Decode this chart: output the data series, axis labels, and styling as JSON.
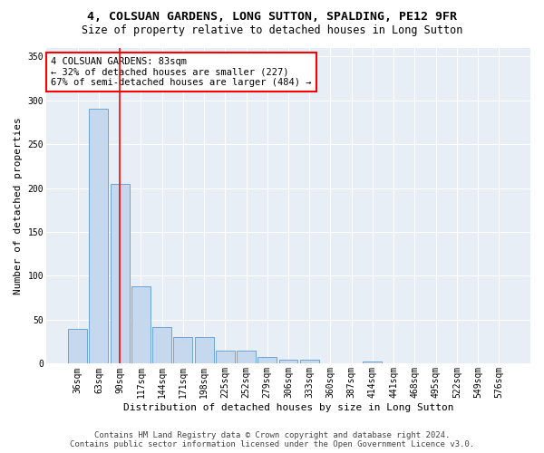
{
  "title": "4, COLSUAN GARDENS, LONG SUTTON, SPALDING, PE12 9FR",
  "subtitle": "Size of property relative to detached houses in Long Sutton",
  "xlabel": "Distribution of detached houses by size in Long Sutton",
  "ylabel": "Number of detached properties",
  "footer_line1": "Contains HM Land Registry data © Crown copyright and database right 2024.",
  "footer_line2": "Contains public sector information licensed under the Open Government Licence v3.0.",
  "categories": [
    "36sqm",
    "63sqm",
    "90sqm",
    "117sqm",
    "144sqm",
    "171sqm",
    "198sqm",
    "225sqm",
    "252sqm",
    "279sqm",
    "306sqm",
    "333sqm",
    "360sqm",
    "387sqm",
    "414sqm",
    "441sqm",
    "468sqm",
    "495sqm",
    "522sqm",
    "549sqm",
    "576sqm"
  ],
  "values": [
    40,
    290,
    205,
    88,
    42,
    30,
    30,
    15,
    15,
    8,
    5,
    5,
    0,
    0,
    3,
    0,
    0,
    0,
    0,
    0,
    0
  ],
  "bar_color": "#c5d8ee",
  "bar_edge_color": "#5b9bd5",
  "red_line_index": 2,
  "annotation_text": "4 COLSUAN GARDENS: 83sqm\n← 32% of detached houses are smaller (227)\n67% of semi-detached houses are larger (484) →",
  "annotation_box_color": "white",
  "annotation_box_edge_color": "red",
  "ylim": [
    0,
    360
  ],
  "yticks": [
    0,
    50,
    100,
    150,
    200,
    250,
    300,
    350
  ],
  "background_color": "#e8eef6",
  "grid_color": "#ffffff",
  "title_fontsize": 9.5,
  "subtitle_fontsize": 8.5,
  "axis_label_fontsize": 8,
  "tick_fontsize": 7,
  "annotation_fontsize": 7.5,
  "footer_fontsize": 6.5
}
